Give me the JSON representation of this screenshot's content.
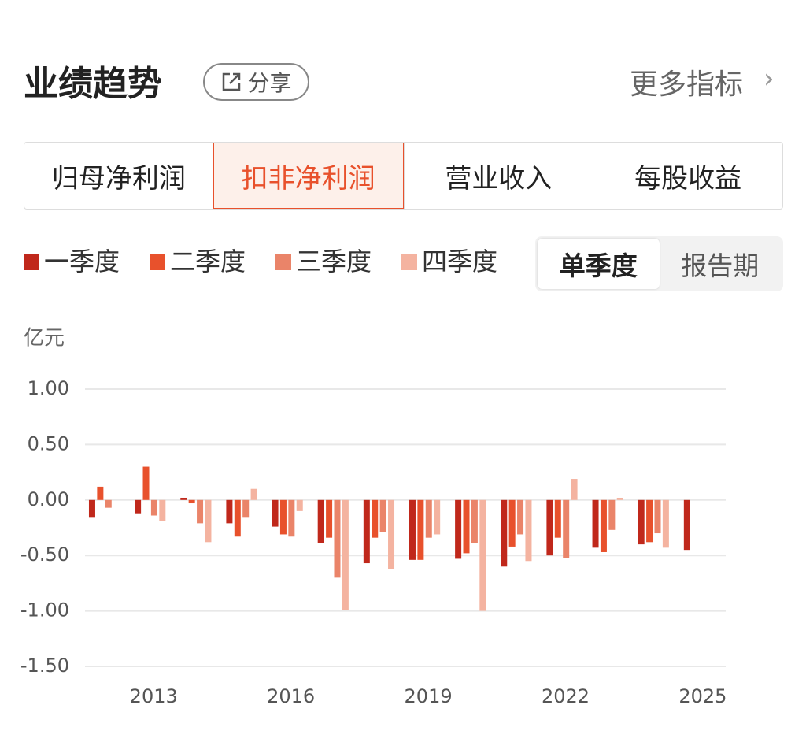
{
  "header": {
    "title": "业绩趋势",
    "share": "分享",
    "more": "更多指标"
  },
  "tabs": {
    "items": [
      "归母净利润",
      "扣非净利润",
      "营业收入",
      "每股收益"
    ],
    "active": 1
  },
  "period_toggle": {
    "items": [
      "单季度",
      "报告期"
    ],
    "active": 0
  },
  "chart_data": {
    "type": "bar",
    "ylabel": "亿元",
    "x": [
      2012,
      2013,
      2014,
      2015,
      2016,
      2017,
      2018,
      2019,
      2020,
      2021,
      2022,
      2023,
      2024,
      2025
    ],
    "series": [
      {
        "name": "一季度",
        "color": "#c0281b",
        "values": [
          -0.16,
          -0.12,
          0.02,
          -0.21,
          -0.24,
          -0.39,
          -0.57,
          -0.54,
          -0.53,
          -0.6,
          -0.5,
          -0.43,
          -0.4,
          -0.45
        ]
      },
      {
        "name": "二季度",
        "color": "#e8512c",
        "values": [
          0.12,
          0.3,
          -0.03,
          -0.33,
          -0.31,
          -0.34,
          -0.34,
          -0.54,
          -0.48,
          -0.42,
          -0.34,
          -0.47,
          -0.38,
          null
        ]
      },
      {
        "name": "三季度",
        "color": "#ea8469",
        "values": [
          -0.07,
          -0.14,
          -0.21,
          -0.16,
          -0.33,
          -0.7,
          -0.29,
          -0.34,
          -0.39,
          -0.31,
          -0.52,
          -0.27,
          -0.3,
          null
        ]
      },
      {
        "name": "四季度",
        "color": "#f4b3a0",
        "values": [
          null,
          -0.19,
          -0.38,
          0.1,
          -0.1,
          -0.99,
          -0.62,
          -0.31,
          -1.0,
          -0.55,
          0.19,
          0.02,
          -0.43,
          null
        ]
      }
    ],
    "xlim": [
      2011.5,
      2025.5
    ],
    "xticks": [
      2013,
      2016,
      2019,
      2022,
      2025
    ],
    "ylim": [
      -1.5,
      1.0
    ],
    "yticks": [
      {
        "value": 1,
        "label": "1.00"
      },
      {
        "value": 0.5,
        "label": "0.50"
      },
      {
        "value": 0,
        "label": "0.00"
      },
      {
        "value": -0.5,
        "label": "-0.50"
      },
      {
        "value": -1,
        "label": "-1.00"
      },
      {
        "value": -1.5,
        "label": "-1.50"
      }
    ],
    "grid": true
  }
}
